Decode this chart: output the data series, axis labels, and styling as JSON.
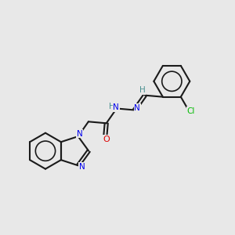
{
  "background_color": "#e8e8e8",
  "bond_color": "#1a1a1a",
  "atom_colors": {
    "N": "#0000ee",
    "O": "#dd0000",
    "Cl": "#00bb00",
    "H": "#4a9090"
  },
  "figsize": [
    3.0,
    3.0
  ],
  "dpi": 100,
  "bond_lw": 1.5,
  "inner_circle_lw": 1.2
}
